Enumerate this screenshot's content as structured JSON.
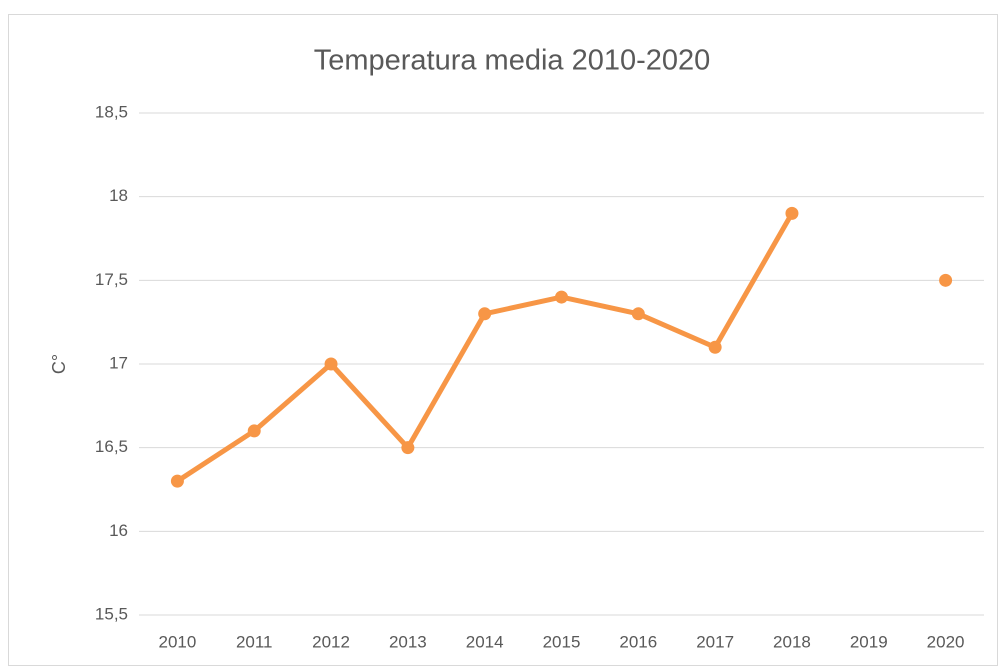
{
  "chart_data": {
    "type": "line",
    "title": "Temperatura media 2010-2020",
    "y_label": "C°",
    "categories": [
      "2010",
      "2011",
      "2012",
      "2013",
      "2014",
      "2015",
      "2016",
      "2017",
      "2018",
      "2019",
      "2020"
    ],
    "series": [
      {
        "name": "Temperatura media",
        "color": "#f79646",
        "values": [
          16.3,
          16.6,
          17.0,
          16.5,
          17.3,
          17.4,
          17.3,
          17.1,
          17.9,
          null,
          17.5
        ]
      }
    ],
    "ylim": [
      15.5,
      18.5
    ],
    "yticks": [
      {
        "value": 15.5,
        "label": "15,5"
      },
      16,
      {
        "value": 16.5,
        "label": "16,5"
      },
      17,
      {
        "value": 17.5,
        "label": "17,5"
      },
      18,
      {
        "value": 18.5,
        "label": "18,5"
      }
    ],
    "grid": true
  }
}
